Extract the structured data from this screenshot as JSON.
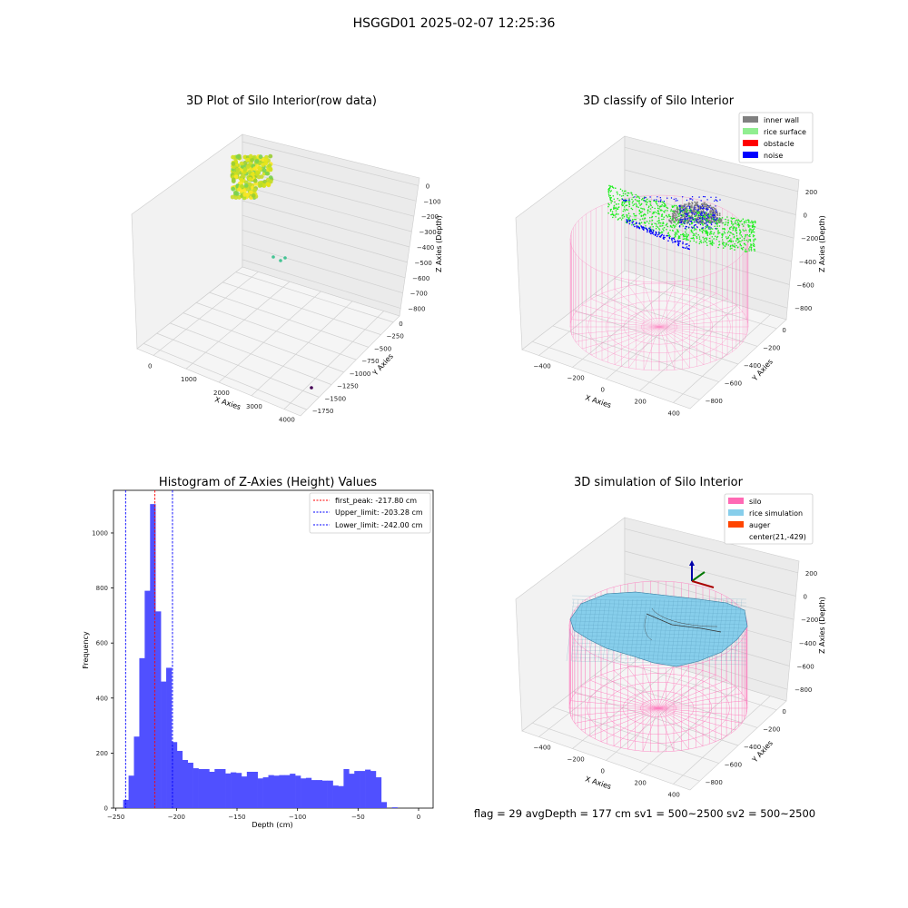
{
  "suptitle": "HSGGD01 2025-02-07 12:25:36",
  "footer": "flag = 29  avgDepth = 177 cm  sv1 = 500~2500  sv2 = 500~2500",
  "colors": {
    "hist_bar": "#5050ff",
    "first_peak_line": "#ff0000",
    "limit_lines": "#0000ff",
    "inner_wall": "#808080",
    "rice_surface": "#90ee90",
    "obstacle": "#ff0000",
    "noise": "#0000ff",
    "silo": "#ff69b4",
    "rice_simulation": "#87ceeb",
    "auger": "#ff4500"
  },
  "chart_data": [
    {
      "type": "scatter",
      "title": "3D Plot of Silo Interior(row data)",
      "xlabel": "X Axies",
      "ylabel": "Y Axies",
      "zlabel": "Z Axies (Depth)",
      "xticks": [
        "0",
        "1000",
        "2000",
        "3000",
        "4000"
      ],
      "yticks": [
        "0",
        "−250",
        "−500",
        "−750",
        "−1000",
        "−1250",
        "−1500",
        "−1750"
      ],
      "zticks": [
        "0",
        "−100",
        "−200",
        "−300",
        "−400",
        "−500",
        "−600",
        "−700",
        "−800"
      ],
      "xlim": [
        -400,
        4200
      ],
      "ylim": [
        -1850,
        100
      ],
      "zlim": [
        -820,
        10
      ],
      "grid": true,
      "clusters": [
        {
          "label": "main rice surface cluster",
          "x_range": [
            -350,
            350
          ],
          "y_range": [
            -500,
            50
          ],
          "z_range": [
            -260,
            -150
          ],
          "color": "#c8dc2a"
        },
        {
          "label": "outlier points",
          "points": [
            [
              700,
              -700,
              -580
            ],
            [
              780,
              -760,
              -590
            ],
            [
              830,
              -720,
              -585
            ]
          ],
          "color": "#45c494"
        },
        {
          "label": "far outlier",
          "points": [
            [
              4050,
              -1750,
              -790
            ]
          ],
          "color": "#440154"
        }
      ]
    },
    {
      "type": "scatter",
      "title": "3D classify of Silo Interior",
      "xlabel": "X Axies",
      "ylabel": "Y Axies",
      "zlabel": "Z Axies (Depth)",
      "xticks": [
        "−400",
        "−200",
        "0",
        "200",
        "400"
      ],
      "yticks": [
        "0",
        "−200",
        "−400",
        "−600",
        "−800"
      ],
      "zticks": [
        "200",
        "0",
        "−200",
        "−400",
        "−600",
        "−800"
      ],
      "legend": [
        "inner wall",
        "rice surface",
        "obstacle",
        "noise"
      ],
      "legend_loc": "upper right",
      "grid": true
    },
    {
      "type": "bar",
      "title": "Histogram of Z-Axies (Height) Values",
      "xlabel": "Depth (cm)",
      "ylabel": "Frequency",
      "xlim": [
        -252,
        12
      ],
      "ylim": [
        0,
        1155
      ],
      "xticks": [
        "−250",
        "−200",
        "−150",
        "−100",
        "−50",
        "0"
      ],
      "yticks": [
        "0",
        "200",
        "400",
        "600",
        "800",
        "1000"
      ],
      "bin_start": -244,
      "bin_width": 4.44,
      "values": [
        30,
        118,
        260,
        545,
        790,
        1105,
        715,
        460,
        510,
        240,
        208,
        175,
        165,
        145,
        142,
        142,
        132,
        142,
        142,
        126,
        130,
        128,
        115,
        132,
        132,
        108,
        112,
        120,
        118,
        120,
        120,
        125,
        118,
        108,
        110,
        102,
        102,
        100,
        100,
        82,
        80,
        142,
        125,
        135,
        135,
        140,
        135,
        112,
        22,
        0,
        3,
        0
      ],
      "vlines": [
        {
          "label": "first_peak: -217.80 cm",
          "x": -217.8,
          "color": "#ff0000"
        },
        {
          "label": "Upper_limit: -203.28 cm",
          "x": -203.28,
          "color": "#0000ff"
        },
        {
          "label": "Lower_limit: -242.00 cm",
          "x": -242.0,
          "color": "#0000ff"
        }
      ],
      "legend_loc": "upper right"
    },
    {
      "type": "area",
      "title": "3D simulation of Silo Interior",
      "xlabel": "X Axies",
      "ylabel": "Y Axies",
      "zlabel": "Z Axies (Depth)",
      "xticks": [
        "−400",
        "−200",
        "0",
        "200",
        "400"
      ],
      "yticks": [
        "0",
        "−200",
        "−400",
        "−600",
        "−800"
      ],
      "zticks": [
        "200",
        "0",
        "−200",
        "−400",
        "−600",
        "−800"
      ],
      "legend": [
        "silo",
        "rice simulation",
        "auger",
        "center(21,-429)"
      ],
      "center": [
        21,
        -429
      ],
      "legend_loc": "upper right",
      "grid": true
    }
  ]
}
